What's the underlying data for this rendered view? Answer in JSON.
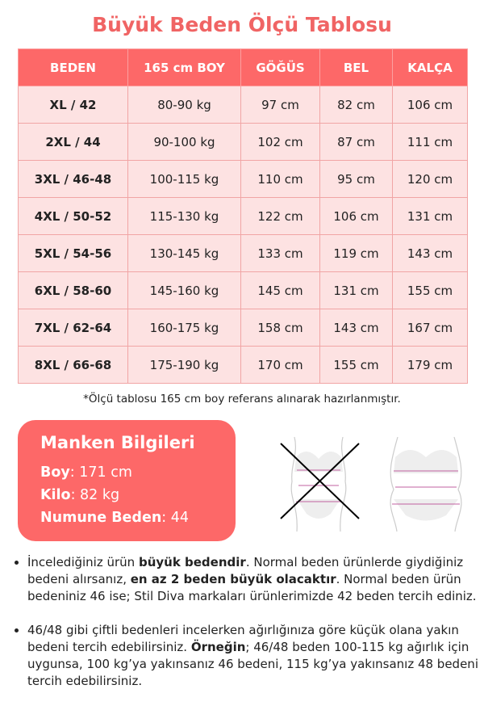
{
  "title": "Büyük Beden Ölçü Tablosu",
  "table": {
    "headers": [
      "BEDEN",
      "165 cm BOY",
      "GÖĞÜS",
      "BEL",
      "KALÇA"
    ],
    "rows": [
      [
        "XL / 42",
        "80-90 kg",
        "97 cm",
        "82 cm",
        "106 cm"
      ],
      [
        "2XL / 44",
        "90-100 kg",
        "102 cm",
        "87 cm",
        "111 cm"
      ],
      [
        "3XL / 46-48",
        "100-115 kg",
        "110 cm",
        "95 cm",
        "120 cm"
      ],
      [
        "4XL / 50-52",
        "115-130 kg",
        "122 cm",
        "106 cm",
        "131 cm"
      ],
      [
        "5XL / 54-56",
        "130-145 kg",
        "133 cm",
        "119 cm",
        "143 cm"
      ],
      [
        "6XL / 58-60",
        "145-160 kg",
        "145 cm",
        "131 cm",
        "155 cm"
      ],
      [
        "7XL / 62-64",
        "160-175 kg",
        "158 cm",
        "143 cm",
        "167 cm"
      ],
      [
        "8XL / 66-68",
        "175-190 kg",
        "170 cm",
        "155 cm",
        "179 cm"
      ]
    ]
  },
  "note": "*Ölçü tablosu 165 cm boy referans alınarak hazırlanmıştır.",
  "manken": {
    "title": "Manken Bilgileri",
    "boy_label": "Boy",
    "boy_value": ": 171 cm",
    "kilo_label": "Kilo",
    "kilo_value": ": 82 kg",
    "beden_label": "Numune Beden",
    "beden_value": ": 44"
  },
  "bullets": {
    "b1": {
      "t1": "İncelediğiniz ürün ",
      "bold1": "büyük bedendir",
      "t2": ". Normal beden ürünlerde giydiğiniz bedeni alırsanız, ",
      "bold2": "en az 2 beden büyük olacaktır",
      "t3": ". Normal beden ürün bedeniniz 46 ise; Stil Diva markaları ürünlerimizde 42 beden tercih ediniz."
    },
    "b2": {
      "t1": "46/48 gibi çiftli bedenleri incelerken ağırlığınıza göre küçük olana yakın bedeni tercih edebilirsiniz. ",
      "bold1": "Örneğin",
      "t2": "; 46/48 beden 100-115 kg ağırlık için uygunsa, 100 kg’ya yakınsanız 46 bedeni, 115 kg’ya yakınsanız 48 bedeni tercih edebilirsiniz."
    }
  },
  "colors": {
    "accent": "#fd6868",
    "row_bg": "#fde2e2",
    "title": "#f06464"
  }
}
